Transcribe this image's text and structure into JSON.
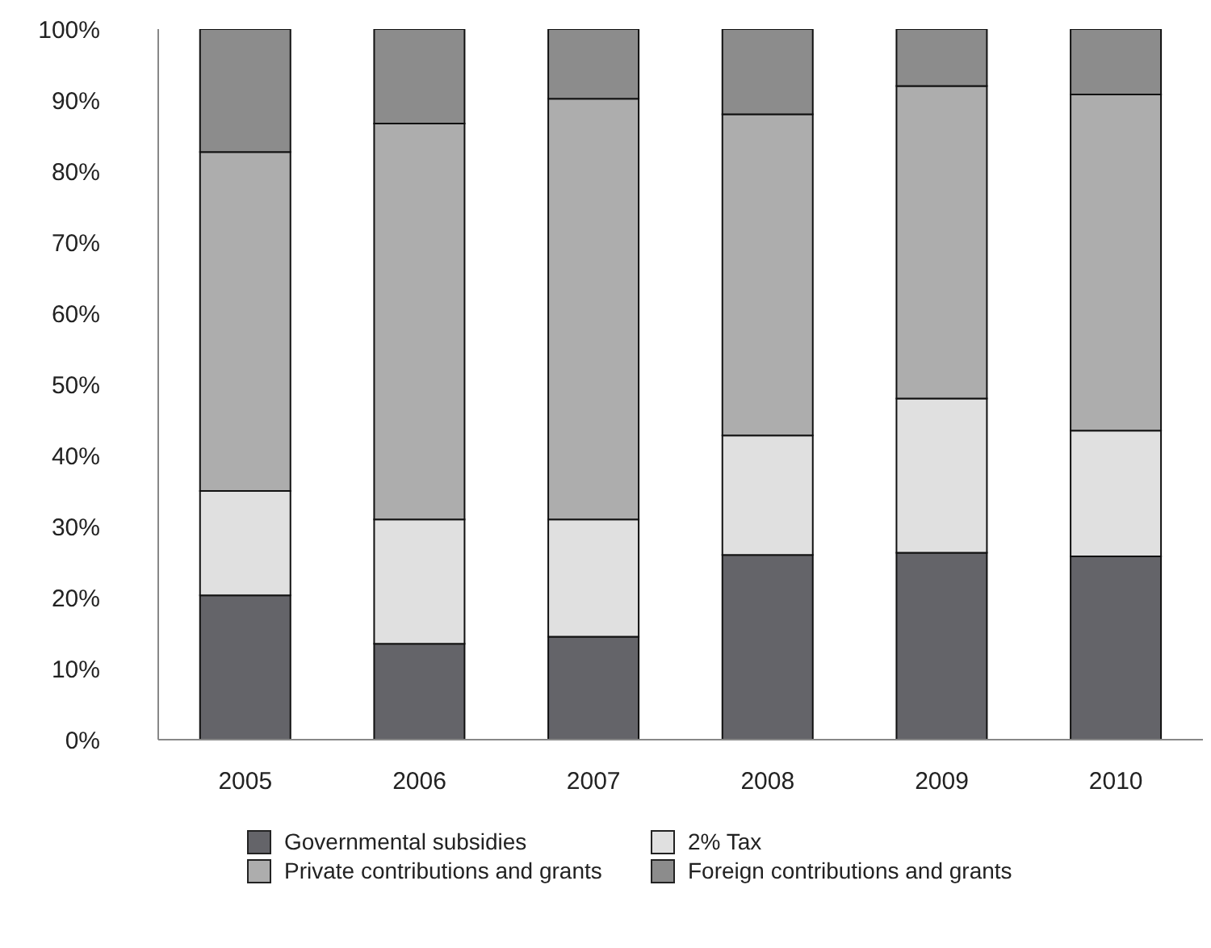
{
  "chart_data": {
    "type": "bar",
    "stacked": true,
    "categories": [
      "2005",
      "2006",
      "2007",
      "2008",
      "2009",
      "2010"
    ],
    "series": [
      {
        "name": "Governmental subsidies",
        "color": "#646469",
        "values": [
          20.3,
          13.5,
          14.5,
          26,
          26.3,
          25.8
        ]
      },
      {
        "name": "2% Tax",
        "color": "#e0e0e0",
        "values": [
          14.7,
          17.5,
          16.5,
          16.8,
          21.7,
          17.7
        ]
      },
      {
        "name": "Private contributions and grants",
        "color": "#adadad",
        "values": [
          47.7,
          55.7,
          59.2,
          45.2,
          44,
          47.3
        ]
      },
      {
        "name": "Foreign contributions and grants",
        "color": "#8c8c8c",
        "values": [
          17.3,
          13.3,
          9.8,
          12,
          8,
          9.2
        ]
      }
    ],
    "ylim": [
      0,
      100
    ],
    "yticks": [
      {
        "value": 0,
        "label": "0%"
      },
      {
        "value": 10,
        "label": "10%"
      },
      {
        "value": 20,
        "label": "20%"
      },
      {
        "value": 30,
        "label": "30%"
      },
      {
        "value": 40,
        "label": "40%"
      },
      {
        "value": 50,
        "label": "50%"
      },
      {
        "value": 60,
        "label": "60%"
      },
      {
        "value": 70,
        "label": "70%"
      },
      {
        "value": 80,
        "label": "80%"
      },
      {
        "value": 90,
        "label": "90%"
      },
      {
        "value": 100,
        "label": "100%"
      }
    ],
    "legend": "bottom",
    "grid": false
  }
}
